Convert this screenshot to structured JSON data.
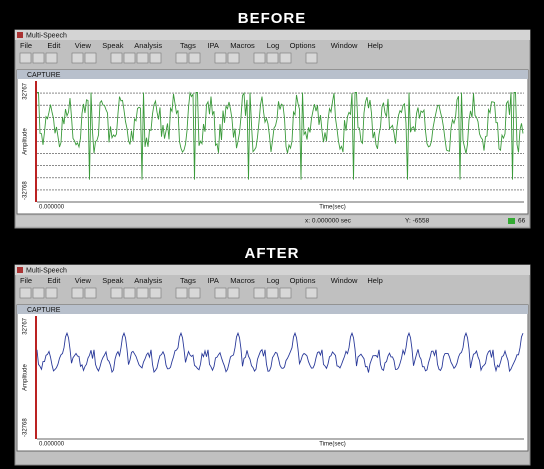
{
  "panels": [
    {
      "heading": "BEFORE",
      "window_title": "Multi-Speech",
      "menu": [
        "File",
        "Edit",
        "View",
        "Speak",
        "Analysis",
        "Tags",
        "IPA",
        "Macros",
        "Log",
        "Options",
        "Window",
        "Help"
      ],
      "capture_title": "CAPTURE",
      "y_max": "32767",
      "y_label": "Amplitude",
      "y_min": "-32768",
      "x_start": "0.000000",
      "x_label": "Time(sec)",
      "status": [
        "x: 0.000000 sec",
        "Y: -6558",
        "66"
      ]
    },
    {
      "heading": "AFTER",
      "window_title": "Multi-Speech",
      "menu": [
        "File",
        "Edit",
        "View",
        "Speak",
        "Analysis",
        "Tags",
        "IPA",
        "Macros",
        "Log",
        "Options",
        "Window",
        "Help"
      ],
      "capture_title": "CAPTURE",
      "y_max": "32767",
      "y_label": "Amplitude",
      "y_min": "-32768",
      "x_start": "0.000000",
      "x_label": "Time(sec)"
    }
  ]
}
